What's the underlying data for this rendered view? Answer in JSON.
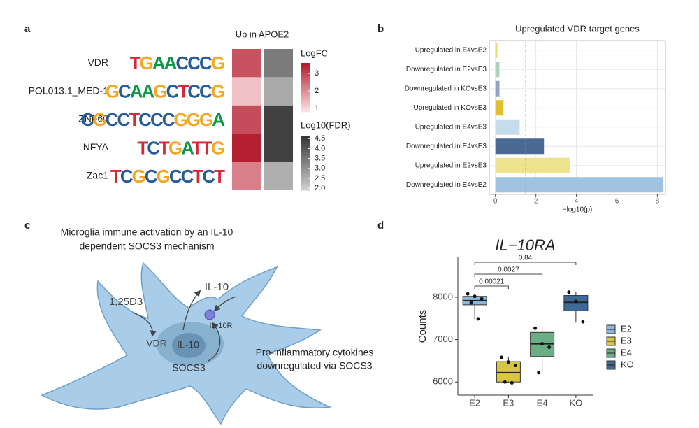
{
  "panel_labels": [
    "a",
    "b",
    "c",
    "d"
  ],
  "chart_data": [
    {
      "type": "heatmap",
      "column_header": "Up in APOE2",
      "rows": [
        "VDR",
        "POL013.1_MED-1",
        "ZNF60",
        "NFYA",
        "Zac1"
      ],
      "motifs": [
        "TGAACCCG",
        "GCAAGCTCCG",
        "CGCCTCCCGGGA",
        "TCTGATTG",
        "TCGCGCCTCT"
      ],
      "letter_colors": {
        "A": "#109648",
        "C": "#255c99",
        "G": "#f5a623",
        "T": "#d62839"
      },
      "series": [
        {
          "name": "LogFC",
          "values": [
            2.8,
            1.3,
            2.9,
            3.5,
            2.2
          ],
          "colors": [
            "#fde6e6",
            "#b2182b"
          ],
          "lim": [
            0.8,
            3.6
          ],
          "ticks": [
            1,
            2,
            3
          ]
        },
        {
          "name": "Log10(FDR)",
          "values": [
            3.4,
            2.6,
            4.4,
            4.4,
            2.5
          ],
          "colors": [
            "#d2d2d2",
            "#333333"
          ],
          "lim": [
            1.9,
            4.65
          ],
          "ticks": [
            {
              "value": 2,
              "label": "2.0"
            },
            2.5,
            {
              "value": 3,
              "label": "3.0"
            },
            3.5,
            {
              "value": 4,
              "label": "4.0"
            },
            4.5
          ]
        }
      ]
    },
    {
      "type": "barh",
      "title": "Upregulated VDR target genes",
      "x_label": "−log10(p)",
      "categories": [
        "Upregulated in E4vsE2",
        "Downregulated in E2vsE3",
        "Downregulated in KOvsE3",
        "Upregulated in KOvsE3",
        "Upregulated in E4vsE3",
        "Downregulated in E4vsE3",
        "Upregulated in E2vsE3",
        "Downregulated in E4vsE2"
      ],
      "values": [
        0.1,
        0.2,
        0.2,
        0.4,
        1.2,
        2.4,
        3.7,
        8.3
      ],
      "colors": [
        "#e8dc7a",
        "#a9d4b6",
        "#8ea3c6",
        "#e0c030",
        "#c4dcec",
        "#4a6a94",
        "#ede38e",
        "#9fc3e0"
      ],
      "threshold": 1.5,
      "xlim": [
        -0.3,
        8.4
      ],
      "xticks": [
        0,
        2,
        4,
        6,
        8
      ],
      "grid": true
    },
    {
      "type": "box",
      "title": "IL−10RA",
      "y_label": "Counts",
      "categories": [
        "E2",
        "E3",
        "E4",
        "KO"
      ],
      "series": [
        {
          "name": "E2",
          "color": "#8cb6dc",
          "min": 7480,
          "q1": 7820,
          "median": 7920,
          "q3": 8020,
          "max": 8080,
          "points": [
            8080,
            8020,
            7960,
            7870,
            7490
          ]
        },
        {
          "name": "E3",
          "color": "#d8c63c",
          "min": 5970,
          "q1": 6000,
          "median": 6220,
          "q3": 6480,
          "max": 6590,
          "points": [
            6580,
            6470,
            6390,
            6000,
            5980
          ]
        },
        {
          "name": "E4",
          "color": "#6aae86",
          "min": 6220,
          "q1": 6600,
          "median": 6900,
          "q3": 7170,
          "max": 7280,
          "points": [
            7270,
            6900,
            6820,
            6220
          ]
        },
        {
          "name": "KO",
          "color": "#3f6a98",
          "min": 7400,
          "q1": 7680,
          "median": 7880,
          "q3": 8040,
          "max": 8130,
          "points": [
            8120,
            7900,
            7420
          ]
        }
      ],
      "comparisons": [
        {
          "pair": [
            "E2",
            "E3"
          ],
          "p": 0.00021
        },
        {
          "pair": [
            "E2",
            "E4"
          ],
          "p": 0.0027
        },
        {
          "pair": [
            "E2",
            "KO"
          ],
          "p": 0.84
        }
      ],
      "ylim": [
        5690,
        8940
      ],
      "yticks": [
        6000,
        7000,
        8000
      ]
    }
  ],
  "diagram": {
    "title": [
      "Microglia immune activation by an IL-10",
      "dependent SOCS3 mechanism"
    ],
    "labels": [
      "1,25D3",
      "IL-10",
      "IL-10R",
      "VDR",
      "IL-10",
      "SOCS3"
    ],
    "note": [
      "Pro-inflammatory cytokines",
      "downregulated via SOCS3"
    ]
  }
}
